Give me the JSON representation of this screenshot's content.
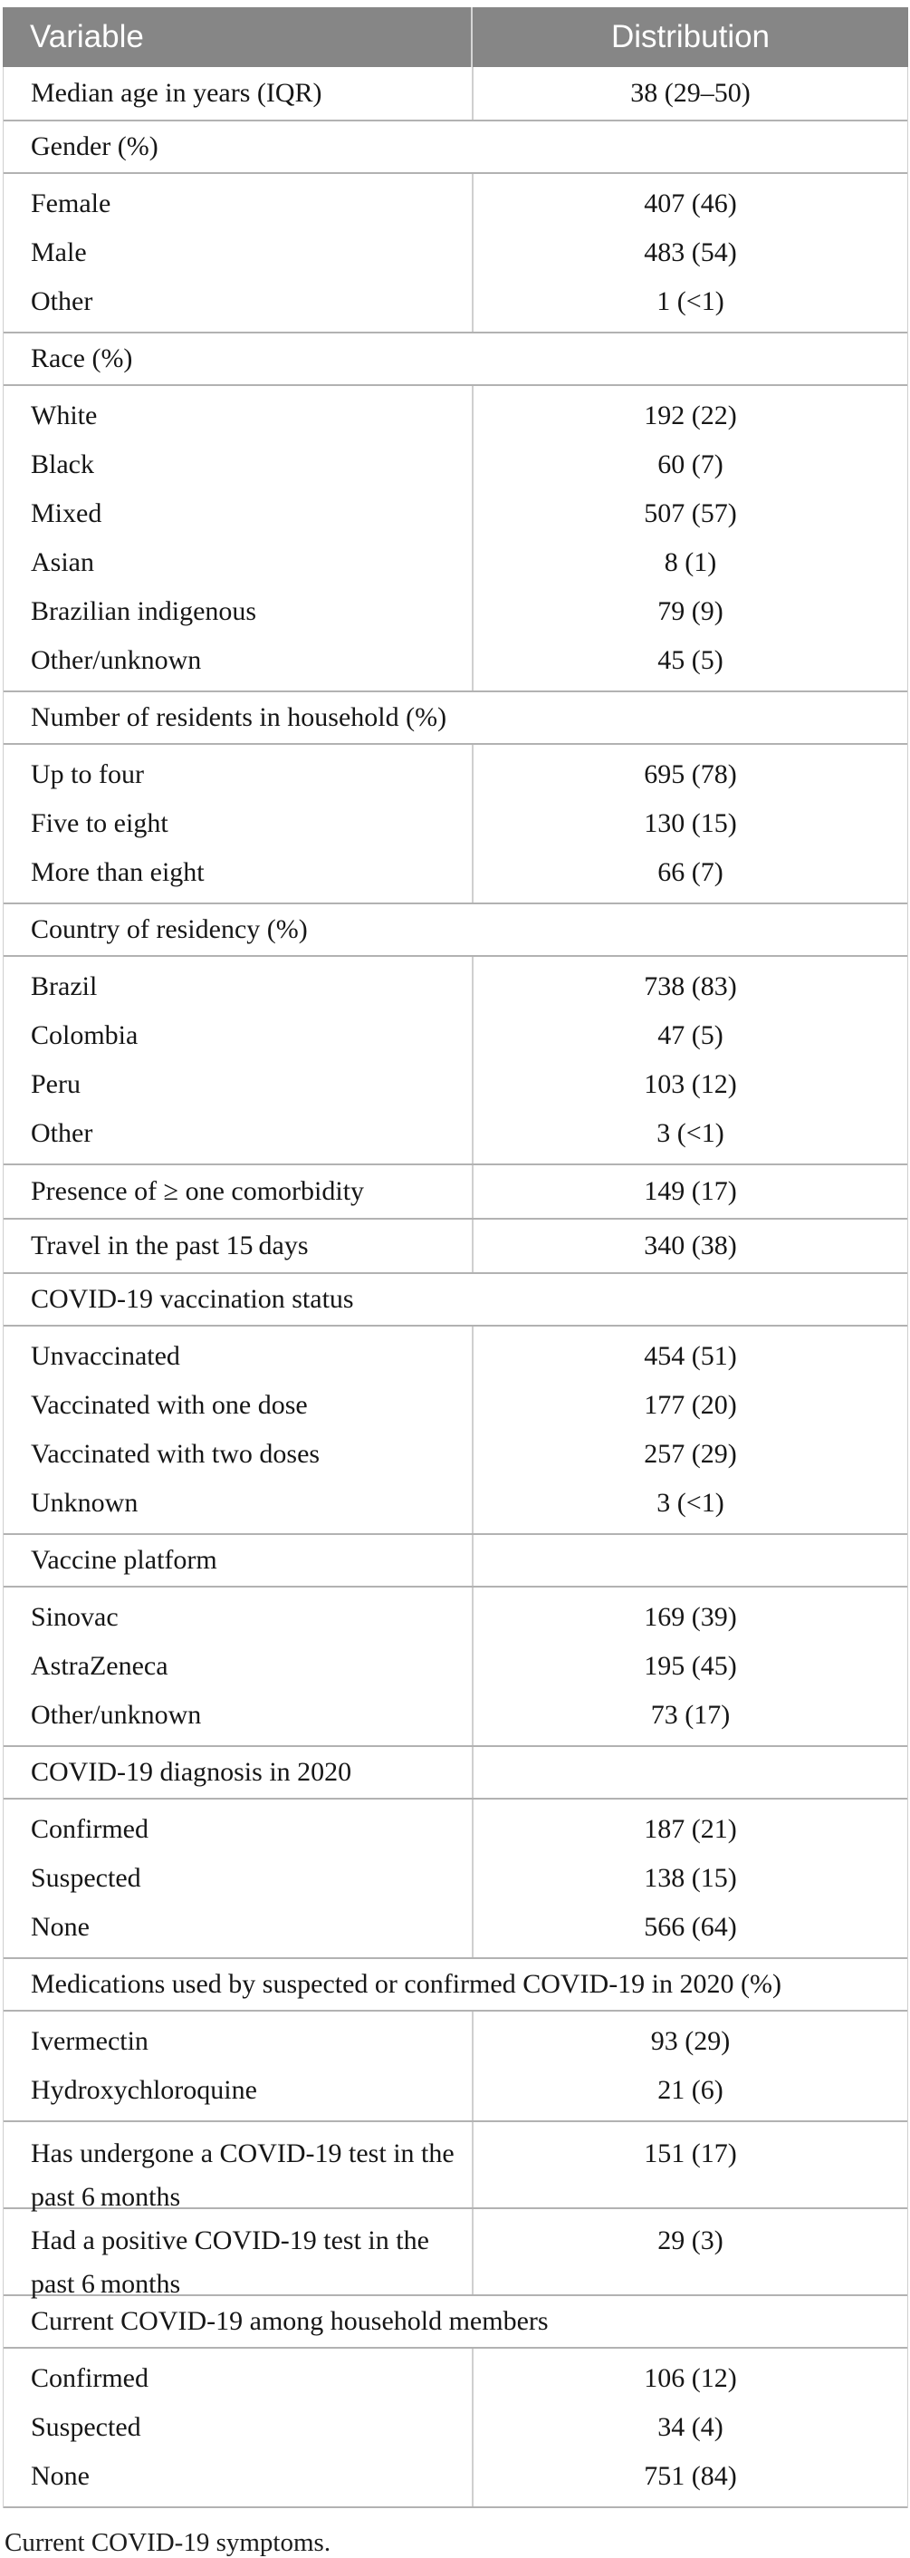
{
  "table": {
    "header": {
      "variable": "Variable",
      "distribution": "Distribution"
    },
    "caption": "Current COVID-19 symptoms.",
    "colors": {
      "header_bg": "#868686",
      "header_text": "#ffffff",
      "row_border": "#b2b2b2",
      "column_divider": "#cfcfcf",
      "body_text": "#161616"
    },
    "rows": [
      {
        "type": "data",
        "label": "Median age in years (IQR)",
        "value": "38 (29–50)"
      },
      {
        "type": "section",
        "label": "Gender (%)",
        "divider": false
      },
      {
        "type": "group",
        "items": [
          {
            "label": "Female",
            "value": "407 (46)"
          },
          {
            "label": "Male",
            "value": "483 (54)"
          },
          {
            "label": "Other",
            "value": "1 (<1)"
          }
        ]
      },
      {
        "type": "section",
        "label": "Race (%)",
        "divider": false
      },
      {
        "type": "group",
        "items": [
          {
            "label": "White",
            "value": "192 (22)"
          },
          {
            "label": "Black",
            "value": "60 (7)"
          },
          {
            "label": "Mixed",
            "value": "507 (57)"
          },
          {
            "label": "Asian",
            "value": "8 (1)"
          },
          {
            "label": "Brazilian indigenous",
            "value": "79 (9)"
          },
          {
            "label": "Other/unknown",
            "value": "45 (5)"
          }
        ]
      },
      {
        "type": "section",
        "label": "Number of residents in household (%)",
        "divider": false
      },
      {
        "type": "group",
        "items": [
          {
            "label": "Up to four",
            "value": "695 (78)"
          },
          {
            "label": "Five to eight",
            "value": "130 (15)"
          },
          {
            "label": "More than eight",
            "value": "66 (7)"
          }
        ]
      },
      {
        "type": "section",
        "label": "Country of residency (%)",
        "divider": false
      },
      {
        "type": "group",
        "items": [
          {
            "label": "Brazil",
            "value": "738 (83)"
          },
          {
            "label": "Colombia",
            "value": "47 (5)"
          },
          {
            "label": "Peru",
            "value": "103 (12)"
          },
          {
            "label": "Other",
            "value": "3 (<1)"
          }
        ]
      },
      {
        "type": "data",
        "label": "Presence of ≥ one comorbidity",
        "value": "149 (17)"
      },
      {
        "type": "data",
        "label": "Travel in the past 15 days",
        "value": "340 (38)"
      },
      {
        "type": "section",
        "label": "COVID-19 vaccination status",
        "divider": false
      },
      {
        "type": "group",
        "items": [
          {
            "label": "Unvaccinated",
            "value": "454 (51)"
          },
          {
            "label": "Vaccinated with one dose",
            "value": "177 (20)"
          },
          {
            "label": "Vaccinated with two doses",
            "value": "257 (29)"
          },
          {
            "label": "Unknown",
            "value": "3 (<1)"
          }
        ]
      },
      {
        "type": "section",
        "label": "Vaccine platform",
        "divider": true
      },
      {
        "type": "group",
        "items": [
          {
            "label": "Sinovac",
            "value": "169 (39)"
          },
          {
            "label": "AstraZeneca",
            "value": "195 (45)"
          },
          {
            "label": "Other/unknown",
            "value": "73 (17)"
          }
        ]
      },
      {
        "type": "section",
        "label": "COVID-19 diagnosis in 2020",
        "divider": true
      },
      {
        "type": "group",
        "items": [
          {
            "label": "Confirmed",
            "value": "187 (21)"
          },
          {
            "label": "Suspected",
            "value": "138 (15)"
          },
          {
            "label": "None",
            "value": "566 (64)"
          }
        ]
      },
      {
        "type": "section",
        "label": "Medications used by suspected or confirmed COVID-19 in 2020 (%)",
        "divider": false
      },
      {
        "type": "group",
        "items": [
          {
            "label": "Ivermectin",
            "value": "93 (29)"
          },
          {
            "label": "Hydroxychloroquine",
            "value": "21 (6)"
          }
        ]
      },
      {
        "type": "data",
        "wrap": true,
        "label": "Has undergone a COVID-19 test in the\npast 6 months",
        "value": "151 (17)"
      },
      {
        "type": "data",
        "wrap": true,
        "label": "Had a positive COVID-19 test in the\npast 6 months",
        "value": "29 (3)"
      },
      {
        "type": "section",
        "label": "Current COVID-19 among household members",
        "divider": false
      },
      {
        "type": "group",
        "items": [
          {
            "label": "Confirmed",
            "value": "106 (12)"
          },
          {
            "label": "Suspected",
            "value": "34 (4)"
          },
          {
            "label": "None",
            "value": "751 (84)"
          }
        ]
      }
    ]
  }
}
